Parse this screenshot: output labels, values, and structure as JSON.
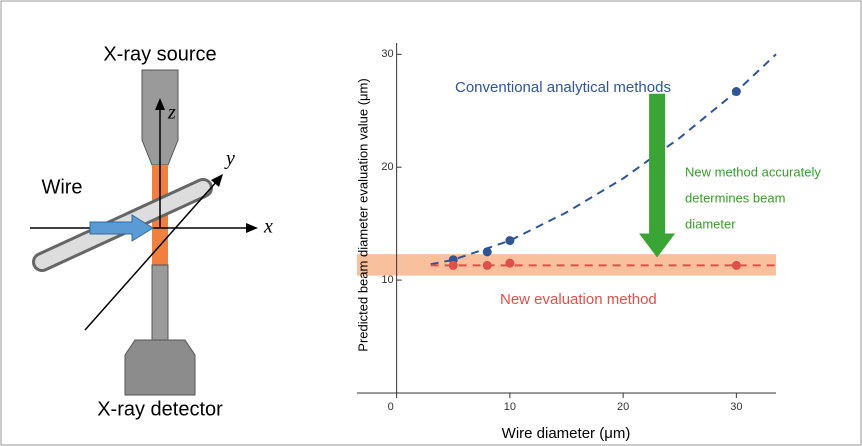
{
  "diagram": {
    "source": "X-ray source",
    "wire": "Wire",
    "detector": "X-ray detector",
    "axes": [
      "z",
      "y",
      "x"
    ]
  },
  "chart_data": {
    "type": "scatter",
    "x_label": "Wire diameter (μm)",
    "y_label": "Predicted beam diameter evaluation value (μm)",
    "xlim": [
      -3.5,
      33.5
    ],
    "ylim": [
      0,
      31
    ],
    "xticks": [
      0,
      10,
      20,
      30
    ],
    "yticks": [
      10,
      20,
      30
    ],
    "series": [
      {
        "name": "Conventional analytical methods",
        "color": "#2f5597",
        "x": [
          5,
          8,
          10,
          30
        ],
        "values": [
          11.8,
          12.5,
          13.5,
          26.7
        ],
        "fit": {
          "x": [
            3,
            5,
            10,
            15,
            20,
            25,
            30,
            33.5
          ],
          "values": [
            11.4,
            11.8,
            13.5,
            16.0,
            19.0,
            22.6,
            26.7,
            30.0
          ]
        }
      },
      {
        "name": "New evaluation method",
        "color": "#e0504a",
        "x": [
          5,
          8,
          10,
          30
        ],
        "values": [
          11.3,
          11.3,
          11.5,
          11.3
        ],
        "fit": {
          "x": [
            3,
            33.5
          ],
          "values": [
            11.3,
            11.3
          ]
        },
        "band": [
          10.4,
          12.3
        ],
        "band_color": "#f7b58c"
      }
    ],
    "annotation": [
      "New method accurately",
      "determines beam",
      "diameter"
    ],
    "annotation_color": "#3a9a2a",
    "arrow": {
      "x": 23,
      "from": 26.5,
      "to": 12
    }
  }
}
